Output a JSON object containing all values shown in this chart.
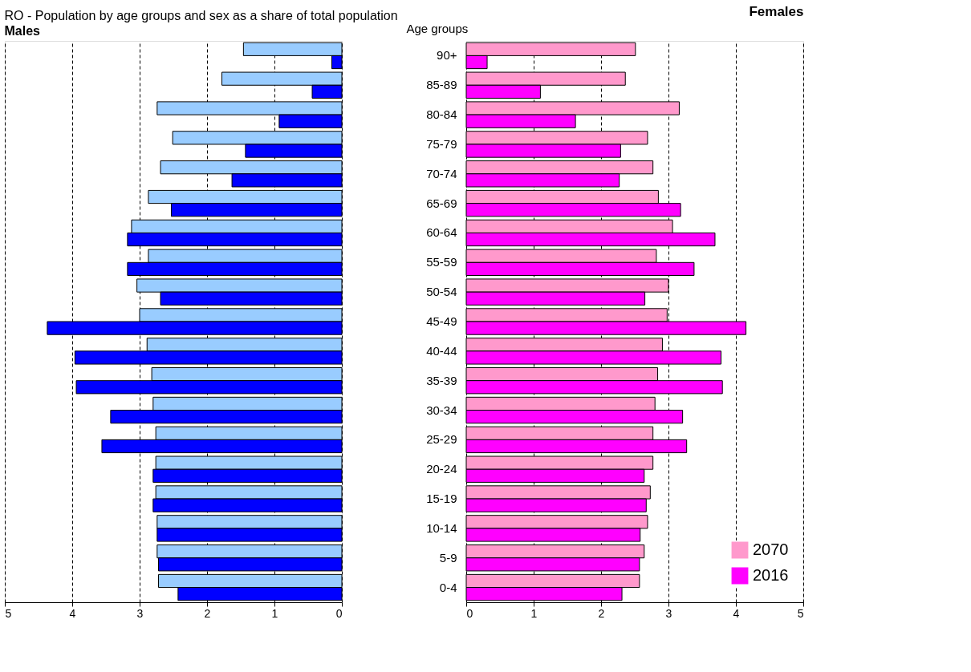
{
  "chart_data": [
    {
      "type": "bar",
      "orientation": "horizontal",
      "title": "RO - Population by age groups and sex as a share of total population",
      "subtitle": "Males",
      "categories": [
        null,
        null,
        null,
        null,
        null,
        null,
        null,
        null,
        null,
        null,
        null,
        null,
        null,
        null,
        null,
        null,
        null,
        null,
        null
      ],
      "series": [
        {
          "color": "#99ccff",
          "values": [
            1.46,
            1.78,
            2.74,
            2.51,
            2.69,
            2.87,
            3.12,
            2.87,
            3.04,
            3.0,
            2.89,
            2.82,
            2.8,
            2.76,
            2.76,
            2.76,
            2.74,
            2.74,
            2.72
          ]
        },
        {
          "color": "#0000ff",
          "values": [
            0.15,
            0.44,
            0.93,
            1.43,
            1.63,
            2.53,
            3.18,
            3.18,
            2.69,
            4.37,
            3.96,
            3.94,
            3.43,
            3.56,
            2.8,
            2.8,
            2.74,
            2.72,
            2.43
          ]
        }
      ],
      "xlim": [
        5,
        0
      ],
      "xticks": [
        5,
        4,
        3,
        2,
        1,
        0
      ],
      "grid": "x",
      "line_style": "dashed",
      "tick_labels": "x"
    },
    {
      "type": "bar",
      "orientation": "horizontal",
      "title": "Females",
      "ylabel": "Age groups",
      "categories": [
        "90+",
        "85-89",
        "80-84",
        "75-79",
        "70-74",
        "65-69",
        "60-64",
        "55-59",
        "50-54",
        "45-49",
        "40-44",
        "35-39",
        "30-34",
        "25-29",
        "20-24",
        "15-19",
        "10-14",
        "5-9",
        "0-4"
      ],
      "series": [
        {
          "name": "2070",
          "color": "#ff99cc",
          "values": [
            2.51,
            2.36,
            3.16,
            2.69,
            2.77,
            2.85,
            3.06,
            2.82,
            3.0,
            2.98,
            2.91,
            2.84,
            2.8,
            2.77,
            2.77,
            2.73,
            2.69,
            2.64,
            2.57
          ]
        },
        {
          "name": "2016",
          "color": "#ff00ff",
          "values": [
            0.31,
            1.1,
            1.62,
            2.29,
            2.27,
            3.18,
            3.69,
            3.38,
            2.65,
            4.15,
            3.78,
            3.8,
            3.21,
            3.27,
            2.64,
            2.67,
            2.58,
            2.57,
            2.31
          ]
        }
      ],
      "xlim": [
        0,
        5
      ],
      "xticks": [
        0,
        1,
        2,
        3,
        4,
        5
      ],
      "grid": "x",
      "line_style": "dashed",
      "legend": "bottom right"
    }
  ]
}
